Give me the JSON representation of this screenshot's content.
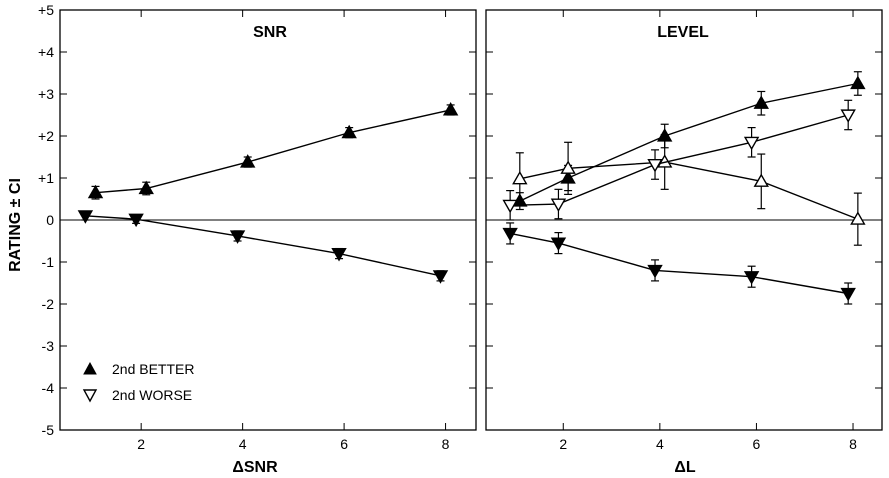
{
  "chart_data": [
    {
      "type": "line",
      "title": "SNR",
      "xlabel": "ΔSNR",
      "ylabel": "RATING ± CI",
      "xlim": [
        0.4,
        8.6
      ],
      "ylim": [
        -5,
        5
      ],
      "xticks": [
        "2",
        "4",
        "6",
        "8"
      ],
      "yticks": [
        "-5",
        "-4",
        "-3",
        "-2",
        "-1",
        "0",
        "+1",
        "+2",
        "+3",
        "+4",
        "+5"
      ],
      "legend": {
        "position": "bottom-left",
        "entries": [
          {
            "label": "2nd BETTER",
            "marker": "filled-up-triangle"
          },
          {
            "label": "2nd WORSE",
            "marker": "open-down-triangle"
          }
        ]
      },
      "series": [
        {
          "marker": "filled-up-triangle",
          "x": [
            1.1,
            2.1,
            4.1,
            6.1,
            8.1
          ],
          "y": [
            0.65,
            0.75,
            1.38,
            2.08,
            2.62
          ],
          "ci": [
            0.15,
            0.15,
            0.12,
            0.12,
            0.12
          ]
        },
        {
          "marker": "filled-down-triangle",
          "x": [
            0.9,
            1.9,
            3.9,
            5.9,
            7.9
          ],
          "y": [
            0.1,
            0.02,
            -0.38,
            -0.8,
            -1.33
          ],
          "ci": [
            0.1,
            0.1,
            0.12,
            0.12,
            0.12
          ]
        }
      ]
    },
    {
      "type": "line",
      "title": "LEVEL",
      "xlabel": "ΔL",
      "ylabel": "",
      "xlim": [
        0.4,
        8.6
      ],
      "ylim": [
        -5,
        5
      ],
      "xticks": [
        "2",
        "4",
        "6",
        "8"
      ],
      "series": [
        {
          "marker": "filled-up-triangle",
          "x": [
            1.1,
            2.1,
            4.1,
            6.1,
            8.1
          ],
          "y": [
            0.45,
            1.0,
            2.0,
            2.78,
            3.25
          ],
          "ci": [
            0.2,
            0.3,
            0.28,
            0.28,
            0.28
          ]
        },
        {
          "marker": "open-up-triangle",
          "x": [
            1.1,
            2.1,
            4.1,
            6.1,
            8.1
          ],
          "y": [
            0.98,
            1.23,
            1.38,
            0.92,
            0.02
          ],
          "ci": [
            0.62,
            0.62,
            0.65,
            0.65,
            0.62
          ]
        },
        {
          "marker": "open-down-triangle",
          "x": [
            0.9,
            1.9,
            3.9,
            5.9,
            7.9
          ],
          "y": [
            0.35,
            0.38,
            1.32,
            1.85,
            2.5
          ],
          "ci": [
            0.35,
            0.35,
            0.35,
            0.35,
            0.35
          ]
        },
        {
          "marker": "filled-down-triangle",
          "x": [
            0.9,
            1.9,
            3.9,
            5.9,
            7.9
          ],
          "y": [
            -0.32,
            -0.55,
            -1.2,
            -1.35,
            -1.75
          ],
          "ci": [
            0.25,
            0.25,
            0.25,
            0.25,
            0.25
          ]
        }
      ]
    }
  ]
}
